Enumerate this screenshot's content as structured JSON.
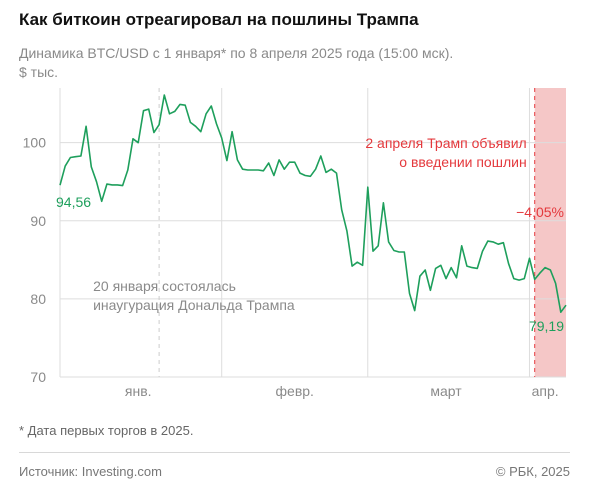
{
  "header": {
    "title": "Как биткоин отреагировал на пошлины Трампа",
    "subtitle_line1": "Динамика BTC/USD с 1 января* по 8 апреля 2025 года (15:00 мск).",
    "subtitle_line2": "$ тыс."
  },
  "footer": {
    "footnote": "* Дата первых торгов в 2025.",
    "source": "Источник: Investing.com",
    "copyright": "© РБК, 2025"
  },
  "colors": {
    "line": "#1e9f5c",
    "highlight": "#f5c7c7",
    "annotation_red": "#e4393d",
    "annotation_gray": "#8a8a8a",
    "grid": "#dddddd"
  },
  "chart_data": {
    "type": "line",
    "title": "Как биткоин отреагировал на пошлины Трампа",
    "ylabel": "$ тыс.",
    "xlabel": "",
    "ylim": [
      70,
      107
    ],
    "yticks": [
      70,
      80,
      90,
      100
    ],
    "grid": true,
    "x_tick_labels": [
      {
        "label": "янв.",
        "date": "2025-01-16"
      },
      {
        "label": "февр.",
        "date": "2025-02-15"
      },
      {
        "label": "март",
        "date": "2025-03-16"
      },
      {
        "label": "апр.",
        "date": "2025-04-04"
      }
    ],
    "x_range": [
      "2025-01-01",
      "2025-04-08"
    ],
    "series": [
      {
        "x": [
          "2025-01-01",
          "2025-01-02",
          "2025-01-03",
          "2025-01-04",
          "2025-01-05",
          "2025-01-06",
          "2025-01-07",
          "2025-01-08",
          "2025-01-09",
          "2025-01-10",
          "2025-01-11",
          "2025-01-12",
          "2025-01-13",
          "2025-01-14",
          "2025-01-15",
          "2025-01-16",
          "2025-01-17",
          "2025-01-18",
          "2025-01-19",
          "2025-01-20",
          "2025-01-21",
          "2025-01-22",
          "2025-01-23",
          "2025-01-24",
          "2025-01-25",
          "2025-01-26",
          "2025-01-27",
          "2025-01-28",
          "2025-01-29",
          "2025-01-30",
          "2025-01-31",
          "2025-02-01",
          "2025-02-02",
          "2025-02-03",
          "2025-02-04",
          "2025-02-05",
          "2025-02-06",
          "2025-02-07",
          "2025-02-08",
          "2025-02-09",
          "2025-02-10",
          "2025-02-11",
          "2025-02-12",
          "2025-02-13",
          "2025-02-14",
          "2025-02-15",
          "2025-02-16",
          "2025-02-17",
          "2025-02-18",
          "2025-02-19",
          "2025-02-20",
          "2025-02-21",
          "2025-02-22",
          "2025-02-23",
          "2025-02-24",
          "2025-02-25",
          "2025-02-26",
          "2025-02-27",
          "2025-02-28",
          "2025-03-01",
          "2025-03-02",
          "2025-03-03",
          "2025-03-04",
          "2025-03-05",
          "2025-03-06",
          "2025-03-07",
          "2025-03-08",
          "2025-03-09",
          "2025-03-10",
          "2025-03-11",
          "2025-03-12",
          "2025-03-13",
          "2025-03-14",
          "2025-03-15",
          "2025-03-16",
          "2025-03-17",
          "2025-03-18",
          "2025-03-19",
          "2025-03-20",
          "2025-03-21",
          "2025-03-22",
          "2025-03-23",
          "2025-03-24",
          "2025-03-25",
          "2025-03-26",
          "2025-03-27",
          "2025-03-28",
          "2025-03-29",
          "2025-03-30",
          "2025-03-31",
          "2025-04-01",
          "2025-04-02",
          "2025-04-03",
          "2025-04-04",
          "2025-04-05",
          "2025-04-06",
          "2025-04-07",
          "2025-04-08"
        ],
        "values": [
          94.56,
          97.0,
          98.1,
          98.2,
          98.3,
          102.1,
          96.9,
          95.0,
          92.5,
          94.7,
          94.6,
          94.6,
          94.5,
          96.5,
          100.5,
          100.0,
          104.1,
          104.3,
          101.3,
          102.3,
          106.1,
          103.7,
          104.0,
          104.9,
          104.8,
          102.6,
          102.1,
          101.4,
          103.7,
          104.7,
          102.4,
          100.6,
          97.7,
          101.4,
          97.8,
          96.6,
          96.5,
          96.5,
          96.5,
          96.4,
          97.4,
          95.8,
          97.8,
          96.6,
          97.5,
          97.5,
          96.1,
          95.8,
          95.7,
          96.6,
          98.3,
          96.2,
          96.6,
          96.1,
          91.4,
          88.7,
          84.2,
          84.7,
          84.3,
          94.3,
          86.1,
          86.8,
          92.3,
          87.3,
          86.2,
          86.0,
          86.0,
          80.7,
          78.5,
          82.9,
          83.7,
          81.1,
          83.9,
          84.3,
          82.6,
          84.0,
          82.7,
          86.8,
          84.2,
          84.0,
          83.9,
          86.1,
          87.4,
          87.3,
          87.0,
          87.2,
          84.5,
          82.6,
          82.4,
          82.6,
          85.2,
          82.5,
          83.3,
          84.0,
          83.7,
          82.0,
          78.3,
          79.19
        ]
      }
    ],
    "highlight_range": [
      "2025-04-02",
      "2025-04-08"
    ],
    "annotations": {
      "start_value": "94,56",
      "end_value": "79,19",
      "change": "−4,05%",
      "inauguration_line1": "20 января состоялась",
      "inauguration_line2": "инаугурация Дональда Трампа",
      "inauguration_date": "2025-01-20",
      "tariff_line1": "2 апреля Трамп объявил",
      "tariff_line2": "о введении пошлин",
      "tariff_date": "2025-04-02"
    }
  }
}
